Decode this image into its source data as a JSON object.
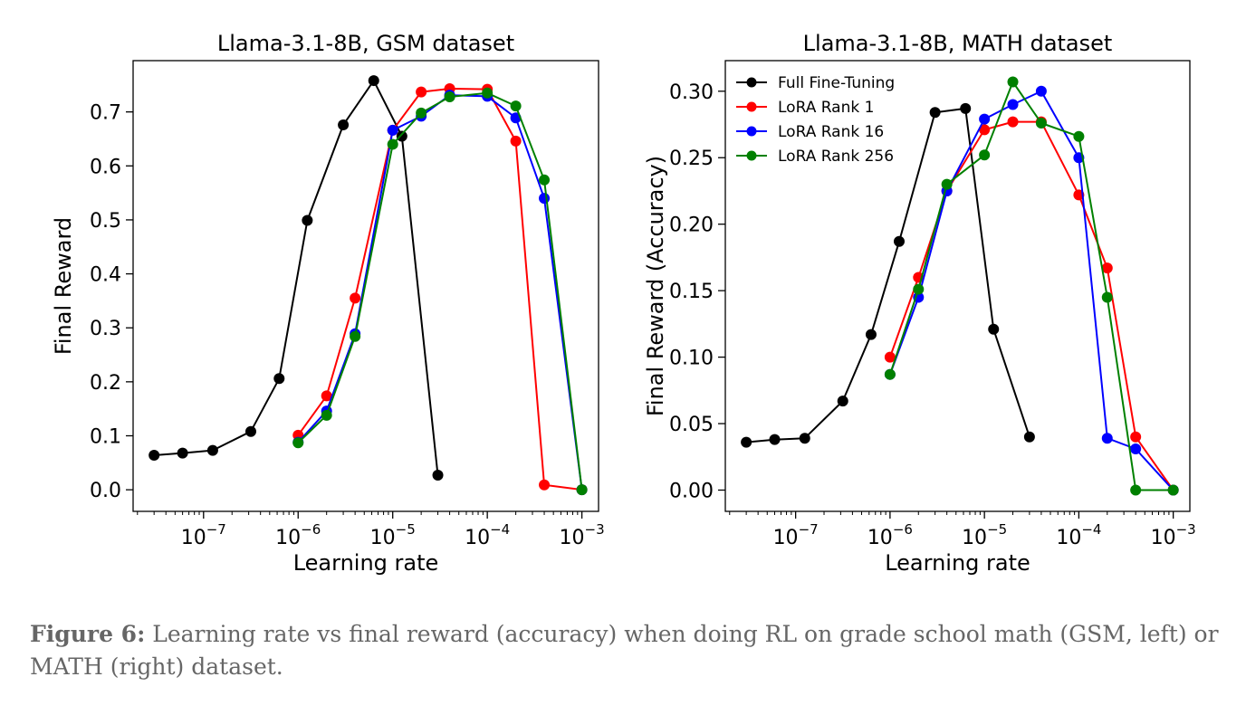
{
  "chart_data": [
    {
      "type": "line",
      "title": "Llama-3.1-8B, GSM dataset",
      "xlabel": "Learning rate",
      "ylabel": "Final Reward",
      "xscale": "log",
      "xlim": [
        1.8e-08,
        0.0015
      ],
      "ylim": [
        -0.04,
        0.795
      ],
      "xticks": [
        {
          "value": 1e-07,
          "label": "10",
          "exp": "−7"
        },
        {
          "value": 1e-06,
          "label": "10",
          "exp": "−6"
        },
        {
          "value": 1e-05,
          "label": "10",
          "exp": "−5"
        },
        {
          "value": 0.0001,
          "label": "10",
          "exp": "−4"
        },
        {
          "value": 0.001,
          "label": "10",
          "exp": "−3"
        }
      ],
      "yticks": [
        {
          "value": 0.0,
          "label": "0.0"
        },
        {
          "value": 0.1,
          "label": "0.1"
        },
        {
          "value": 0.2,
          "label": "0.2"
        },
        {
          "value": 0.3,
          "label": "0.3"
        },
        {
          "value": 0.4,
          "label": "0.4"
        },
        {
          "value": 0.5,
          "label": "0.5"
        },
        {
          "value": 0.6,
          "label": "0.6"
        },
        {
          "value": 0.7,
          "label": "0.7"
        }
      ],
      "legend": null,
      "series": [
        {
          "name": "Full Fine-Tuning",
          "color": "#000000",
          "x": [
            3e-08,
            6e-08,
            1.25e-07,
            3.16e-07,
            6.3e-07,
            1.25e-06,
            3e-06,
            6.3e-06,
            1.25e-05,
            3e-05
          ],
          "y": [
            0.064,
            0.068,
            0.073,
            0.108,
            0.206,
            0.499,
            0.676,
            0.758,
            0.655,
            0.027
          ]
        },
        {
          "name": "LoRA Rank 1",
          "color": "#ff0000",
          "x": [
            1e-06,
            2e-06,
            4e-06,
            1e-05,
            2e-05,
            4e-05,
            0.0001,
            0.0002,
            0.0004,
            0.001
          ],
          "y": [
            0.101,
            0.174,
            0.355,
            0.666,
            0.737,
            0.743,
            0.742,
            0.646,
            0.009,
            0.0
          ]
        },
        {
          "name": "LoRA Rank 16",
          "color": "#0000ff",
          "x": [
            1e-06,
            2e-06,
            4e-06,
            1e-05,
            2e-05,
            4e-05,
            0.0001,
            0.0002,
            0.0004,
            0.001
          ],
          "y": [
            0.088,
            0.146,
            0.289,
            0.666,
            0.692,
            0.731,
            0.729,
            0.689,
            0.54,
            0.0
          ]
        },
        {
          "name": "LoRA Rank 256",
          "color": "#008000",
          "x": [
            1e-06,
            2e-06,
            4e-06,
            1e-05,
            2e-05,
            4e-05,
            0.0001,
            0.0002,
            0.0004,
            0.001
          ],
          "y": [
            0.087,
            0.138,
            0.284,
            0.64,
            0.698,
            0.728,
            0.735,
            0.711,
            0.574,
            0.0
          ]
        }
      ]
    },
    {
      "type": "line",
      "title": "Llama-3.1-8B, MATH dataset",
      "xlabel": "Learning rate",
      "ylabel": "Final Reward (Accuracy)",
      "xscale": "log",
      "xlim": [
        1.8e-08,
        0.0015
      ],
      "ylim": [
        -0.016,
        0.323
      ],
      "xticks": [
        {
          "value": 1e-07,
          "label": "10",
          "exp": "−7"
        },
        {
          "value": 1e-06,
          "label": "10",
          "exp": "−6"
        },
        {
          "value": 1e-05,
          "label": "10",
          "exp": "−5"
        },
        {
          "value": 0.0001,
          "label": "10",
          "exp": "−4"
        },
        {
          "value": 0.001,
          "label": "10",
          "exp": "−3"
        }
      ],
      "yticks": [
        {
          "value": 0.0,
          "label": "0.00"
        },
        {
          "value": 0.05,
          "label": "0.05"
        },
        {
          "value": 0.1,
          "label": "0.10"
        },
        {
          "value": 0.15,
          "label": "0.15"
        },
        {
          "value": 0.2,
          "label": "0.20"
        },
        {
          "value": 0.25,
          "label": "0.25"
        },
        {
          "value": 0.3,
          "label": "0.30"
        }
      ],
      "legend": "upper left",
      "series": [
        {
          "name": "Full Fine-Tuning",
          "color": "#000000",
          "x": [
            3e-08,
            6e-08,
            1.25e-07,
            3.16e-07,
            6.3e-07,
            1.25e-06,
            3e-06,
            6.3e-06,
            1.25e-05,
            3e-05
          ],
          "y": [
            0.036,
            0.038,
            0.039,
            0.067,
            0.117,
            0.187,
            0.284,
            0.287,
            0.121,
            0.04
          ]
        },
        {
          "name": "LoRA Rank 1",
          "color": "#ff0000",
          "x": [
            1e-06,
            2e-06,
            4e-06,
            1e-05,
            2e-05,
            4e-05,
            0.0001,
            0.0002,
            0.0004,
            0.001
          ],
          "y": [
            0.1,
            0.16,
            0.225,
            0.271,
            0.277,
            0.277,
            0.222,
            0.167,
            0.04,
            0.0
          ]
        },
        {
          "name": "LoRA Rank 16",
          "color": "#0000ff",
          "x": [
            1e-06,
            2e-06,
            4e-06,
            1e-05,
            2e-05,
            4e-05,
            0.0001,
            0.0002,
            0.0004,
            0.001
          ],
          "y": [
            0.087,
            0.145,
            0.225,
            0.279,
            0.29,
            0.3,
            0.25,
            0.039,
            0.031,
            0.0
          ]
        },
        {
          "name": "LoRA Rank 256",
          "color": "#008000",
          "x": [
            1e-06,
            2e-06,
            4e-06,
            1e-05,
            2e-05,
            4e-05,
            0.0001,
            0.0002,
            0.0004,
            0.001
          ],
          "y": [
            0.087,
            0.151,
            0.23,
            0.252,
            0.307,
            0.276,
            0.266,
            0.145,
            0.0,
            0.0
          ]
        }
      ]
    }
  ],
  "caption": {
    "label": "Figure 6:",
    "text": " Learning rate vs final reward (accuracy) when doing RL on grade school math (GSM, left) or MATH (right) dataset."
  }
}
